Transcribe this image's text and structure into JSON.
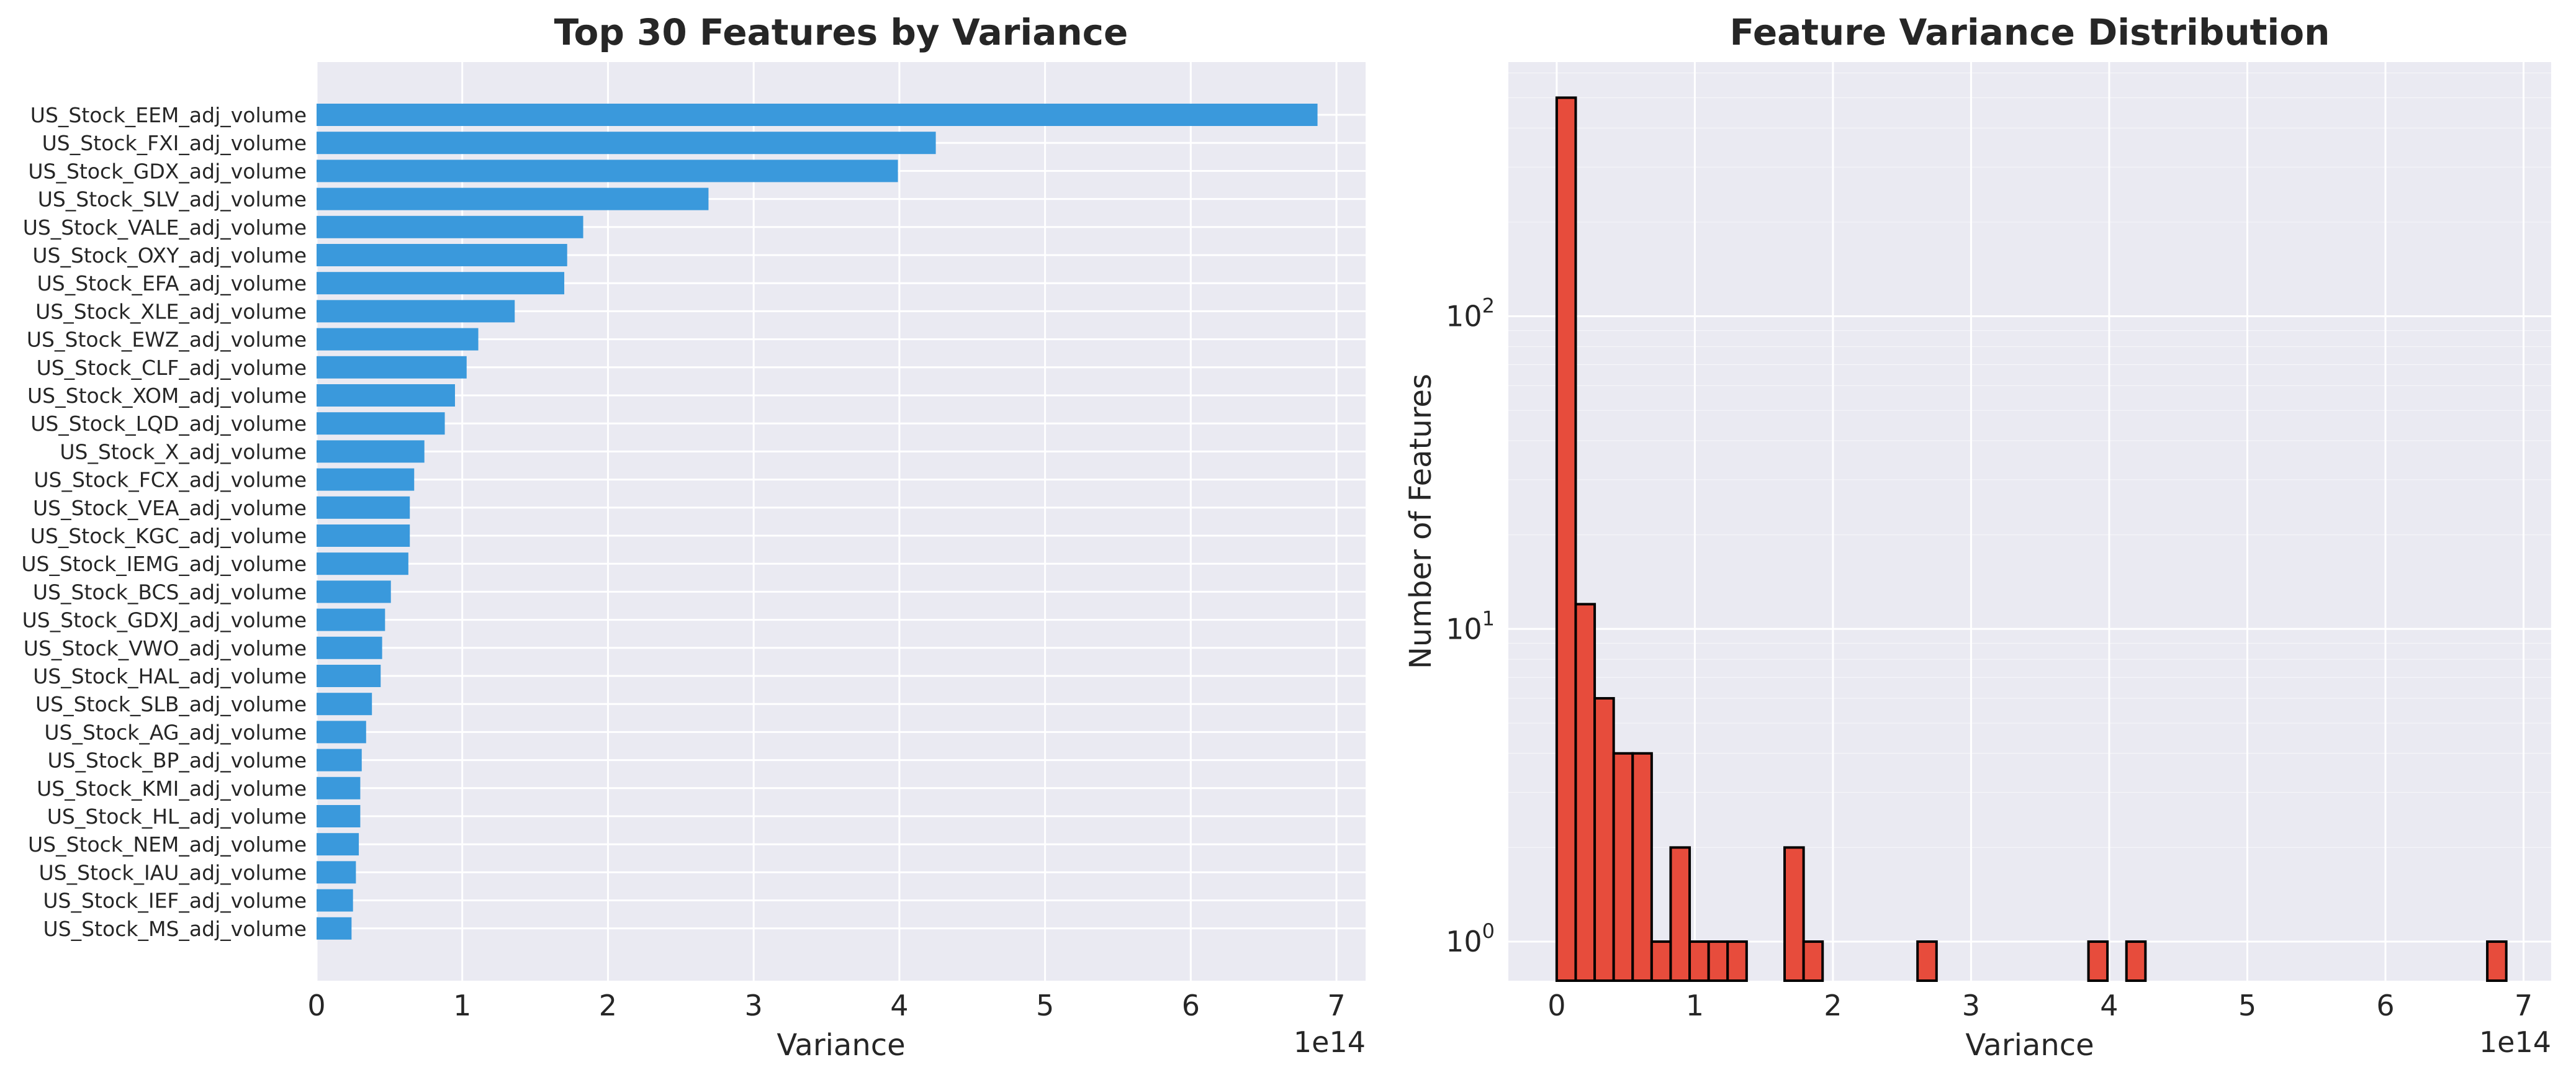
{
  "colors": {
    "bar": "#3a99dc",
    "hist": "#e74c3c",
    "hist_edge": "#000000",
    "axes_bg": "#eaeaf2",
    "grid": "#ffffff",
    "text": "#262626"
  },
  "chart_data": [
    {
      "type": "bar",
      "orientation": "horizontal",
      "title": "Top 30 Features by Variance",
      "xlabel": "Variance",
      "ylabel": "",
      "x_offset_label": "1e14",
      "xlim": [
        0,
        7.2
      ],
      "x_ticks": [
        0,
        1,
        2,
        3,
        4,
        5,
        6,
        7
      ],
      "x_tick_labels": [
        "0",
        "1",
        "2",
        "3",
        "4",
        "5",
        "6",
        "7"
      ],
      "grid": true,
      "categories": [
        "US_Stock_EEM_adj_volume",
        "US_Stock_FXI_adj_volume",
        "US_Stock_GDX_adj_volume",
        "US_Stock_SLV_adj_volume",
        "US_Stock_VALE_adj_volume",
        "US_Stock_OXY_adj_volume",
        "US_Stock_EFA_adj_volume",
        "US_Stock_XLE_adj_volume",
        "US_Stock_EWZ_adj_volume",
        "US_Stock_CLF_adj_volume",
        "US_Stock_XOM_adj_volume",
        "US_Stock_LQD_adj_volume",
        "US_Stock_X_adj_volume",
        "US_Stock_FCX_adj_volume",
        "US_Stock_VEA_adj_volume",
        "US_Stock_KGC_adj_volume",
        "US_Stock_IEMG_adj_volume",
        "US_Stock_BCS_adj_volume",
        "US_Stock_GDXJ_adj_volume",
        "US_Stock_VWO_adj_volume",
        "US_Stock_HAL_adj_volume",
        "US_Stock_SLB_adj_volume",
        "US_Stock_AG_adj_volume",
        "US_Stock_BP_adj_volume",
        "US_Stock_KMI_adj_volume",
        "US_Stock_HL_adj_volume",
        "US_Stock_NEM_adj_volume",
        "US_Stock_IAU_adj_volume",
        "US_Stock_IEF_adj_volume",
        "US_Stock_MS_adj_volume"
      ],
      "values": [
        6.87,
        4.25,
        3.99,
        2.69,
        1.83,
        1.72,
        1.7,
        1.36,
        1.11,
        1.03,
        0.95,
        0.88,
        0.74,
        0.67,
        0.64,
        0.64,
        0.63,
        0.51,
        0.47,
        0.45,
        0.44,
        0.38,
        0.34,
        0.31,
        0.3,
        0.3,
        0.29,
        0.27,
        0.25,
        0.24
      ]
    },
    {
      "type": "bar",
      "subtype": "histogram",
      "title": "Feature Variance Distribution",
      "xlabel": "Variance",
      "ylabel": "Number of Features",
      "x_offset_label": "1e14",
      "y_scale": "log",
      "xlim": [
        -0.35,
        7.2
      ],
      "ylim": [
        0.75,
        650
      ],
      "x_ticks": [
        0,
        1,
        2,
        3,
        4,
        5,
        6,
        7
      ],
      "x_tick_labels": [
        "0",
        "1",
        "2",
        "3",
        "4",
        "5",
        "6",
        "7"
      ],
      "y_ticks": [
        1,
        10,
        100
      ],
      "y_tick_base": "10",
      "y_tick_exponents": [
        "0",
        "1",
        "2"
      ],
      "grid": true,
      "bin_start": 0.0,
      "bin_width": 0.1375,
      "counts": [
        500,
        12,
        6,
        4,
        4,
        1,
        2,
        1,
        1,
        1,
        0,
        0,
        2,
        1,
        0,
        0,
        0,
        0,
        0,
        1,
        0,
        0,
        0,
        0,
        0,
        0,
        0,
        0,
        1,
        0,
        1,
        0,
        0,
        0,
        0,
        0,
        0,
        0,
        0,
        0,
        0,
        0,
        0,
        0,
        0,
        0,
        0,
        0,
        0,
        1
      ]
    }
  ]
}
